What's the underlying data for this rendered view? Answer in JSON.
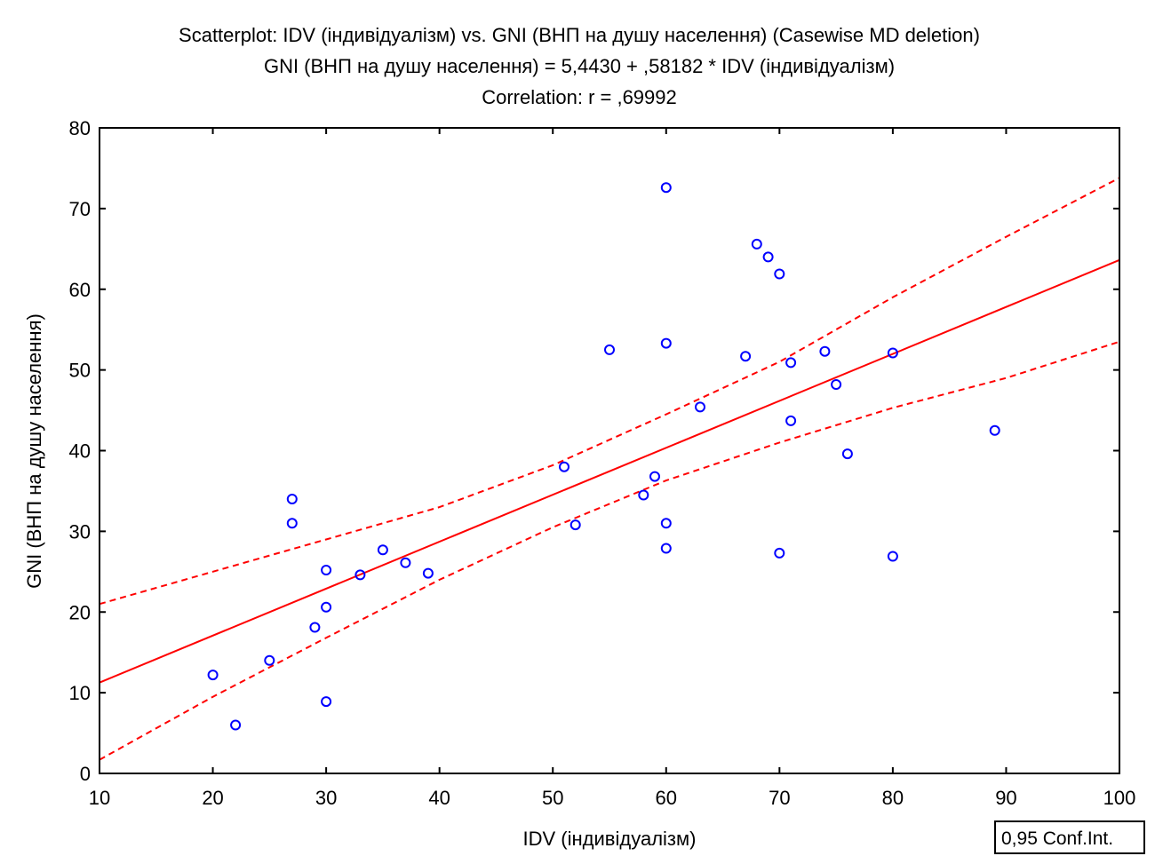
{
  "chart_data": {
    "type": "scatter",
    "title_lines": [
      "Scatterplot: IDV (індивідуалізм) vs. GNI (ВНП на душу населення) (Casewise MD deletion)",
      "GNI (ВНП на душу населення) = 5,4430 + ,58182 * IDV (індивідуалізм)",
      "Correlation: r = ,69992"
    ],
    "xlabel": "IDV (індивідуалізм)",
    "ylabel": "GNI (ВНП на душу населення)",
    "xlim": [
      10,
      100
    ],
    "ylim": [
      0,
      80
    ],
    "x_ticks": [
      10,
      20,
      30,
      40,
      50,
      60,
      70,
      80,
      90,
      100
    ],
    "y_ticks": [
      0,
      10,
      20,
      30,
      40,
      50,
      60,
      70,
      80
    ],
    "grid": false,
    "legend_label": "0,95 Conf.Int.",
    "legend_position": "bottom-right",
    "colors": {
      "points": "#0000ff",
      "fit": "#ff0000",
      "ci": "#ff0000",
      "axes": "#000000"
    },
    "regression": {
      "intercept": 5.443,
      "slope": 0.58182
    },
    "ci_upper": [
      [
        10,
        21.0
      ],
      [
        20,
        25.0
      ],
      [
        30,
        29.0
      ],
      [
        40,
        33.0
      ],
      [
        50,
        38.2
      ],
      [
        60,
        44.5
      ],
      [
        70,
        51.0
      ],
      [
        80,
        59.0
      ],
      [
        90,
        66.5
      ],
      [
        100,
        73.8
      ]
    ],
    "ci_lower": [
      [
        10,
        1.7
      ],
      [
        20,
        9.5
      ],
      [
        30,
        16.8
      ],
      [
        40,
        24.0
      ],
      [
        50,
        30.5
      ],
      [
        60,
        36.3
      ],
      [
        70,
        41.0
      ],
      [
        80,
        45.3
      ],
      [
        90,
        49.0
      ],
      [
        100,
        53.5
      ]
    ],
    "points": [
      {
        "x": 20,
        "y": 12.2
      },
      {
        "x": 22,
        "y": 6.0
      },
      {
        "x": 25,
        "y": 14.0
      },
      {
        "x": 27,
        "y": 34.0
      },
      {
        "x": 27,
        "y": 31.0
      },
      {
        "x": 29,
        "y": 18.1
      },
      {
        "x": 30,
        "y": 25.2
      },
      {
        "x": 30,
        "y": 20.6
      },
      {
        "x": 30,
        "y": 8.9
      },
      {
        "x": 33,
        "y": 24.6
      },
      {
        "x": 35,
        "y": 27.7
      },
      {
        "x": 37,
        "y": 26.1
      },
      {
        "x": 39,
        "y": 24.8
      },
      {
        "x": 51,
        "y": 38.0
      },
      {
        "x": 52,
        "y": 30.8
      },
      {
        "x": 55,
        "y": 52.5
      },
      {
        "x": 58,
        "y": 34.5
      },
      {
        "x": 59,
        "y": 36.8
      },
      {
        "x": 60,
        "y": 72.6
      },
      {
        "x": 60,
        "y": 53.3
      },
      {
        "x": 60,
        "y": 31.0
      },
      {
        "x": 60,
        "y": 27.9
      },
      {
        "x": 63,
        "y": 45.4
      },
      {
        "x": 67,
        "y": 51.7
      },
      {
        "x": 68,
        "y": 65.6
      },
      {
        "x": 69,
        "y": 64.0
      },
      {
        "x": 70,
        "y": 61.9
      },
      {
        "x": 70,
        "y": 27.3
      },
      {
        "x": 71,
        "y": 50.9
      },
      {
        "x": 71,
        "y": 43.7
      },
      {
        "x": 74,
        "y": 52.3
      },
      {
        "x": 75,
        "y": 48.2
      },
      {
        "x": 76,
        "y": 39.6
      },
      {
        "x": 80,
        "y": 52.1
      },
      {
        "x": 80,
        "y": 26.9
      },
      {
        "x": 89,
        "y": 42.5
      }
    ]
  }
}
